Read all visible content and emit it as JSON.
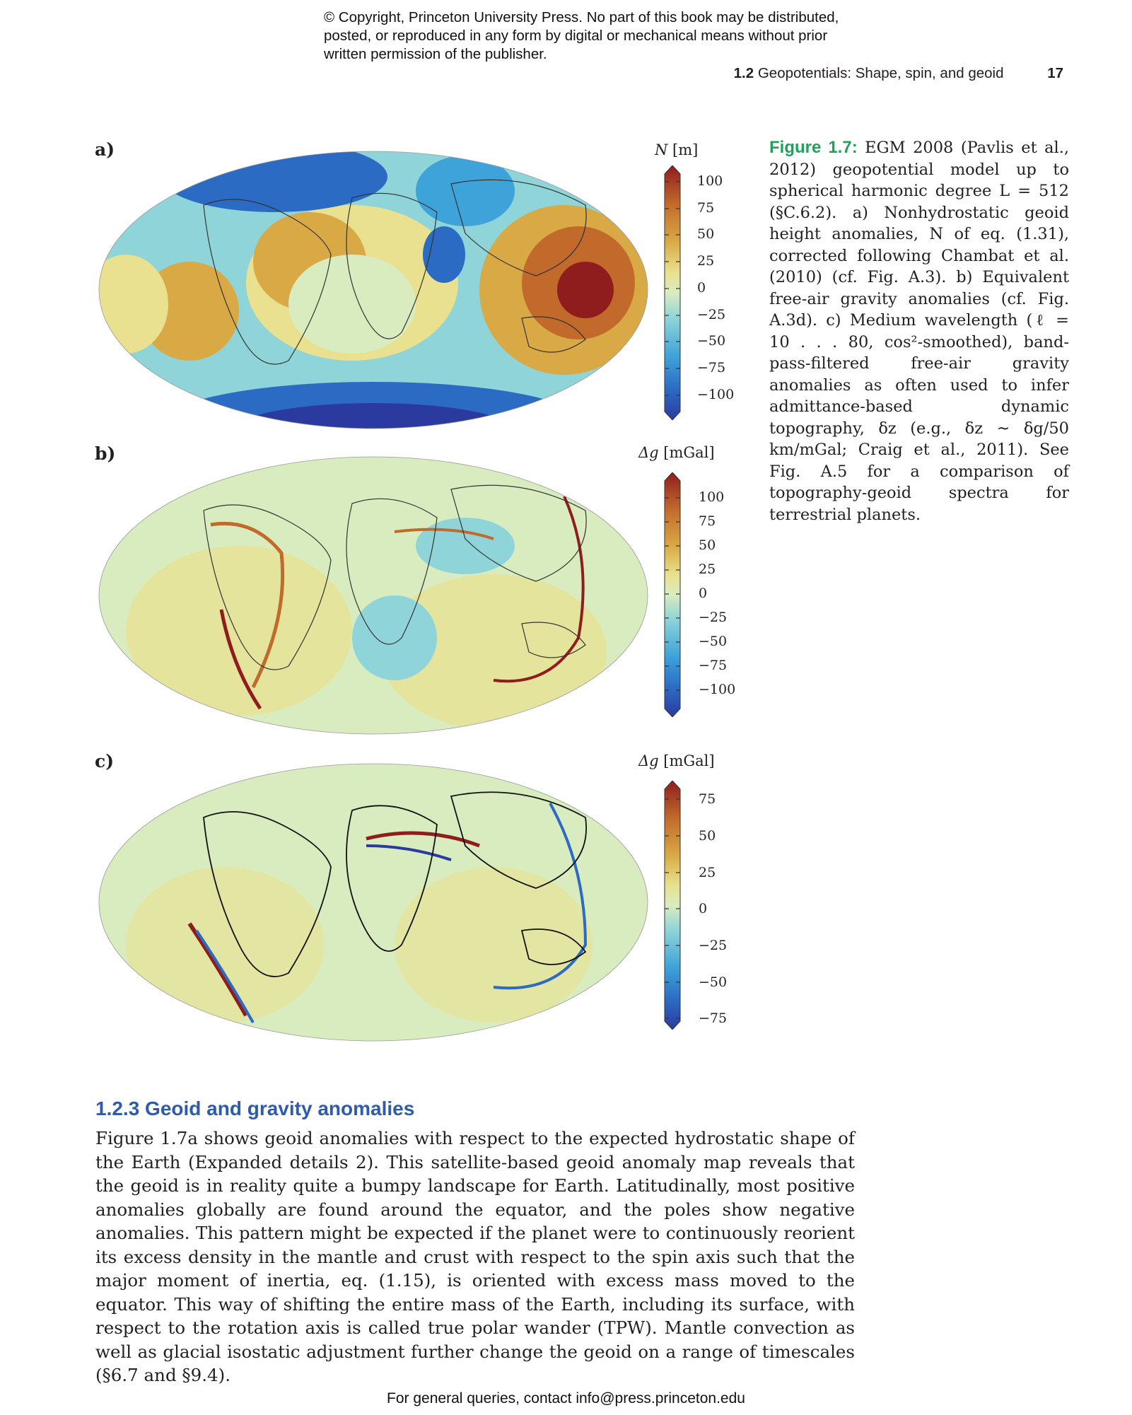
{
  "header": {
    "copyright_notice": "© Copyright, Princeton University Press. No part of this book may be distributed, posted, or reproduced in any form by digital or mechanical means without prior written permission of the publisher.",
    "section_number": "1.2",
    "section_title": "Geopotentials: Shape, spin, and geoid",
    "page_number": "17"
  },
  "figure": {
    "panels": [
      {
        "letter": "a)",
        "colorbar_symbol": "N",
        "colorbar_unit": " [m]",
        "ticks": [
          "100",
          "75",
          "50",
          "25",
          "0",
          "−25",
          "−50",
          "−75",
          "−100"
        ]
      },
      {
        "letter": "b)",
        "colorbar_symbol": "Δg",
        "colorbar_unit": " [mGal]",
        "ticks": [
          "100",
          "75",
          "50",
          "25",
          "0",
          "−25",
          "−50",
          "−75",
          "−100"
        ]
      },
      {
        "letter": "c)",
        "colorbar_symbol": "Δg",
        "colorbar_unit": " [mGal]",
        "ticks": [
          "75",
          "50",
          "25",
          "0",
          "−25",
          "−50",
          "−75"
        ]
      }
    ],
    "colormap": [
      "#2b3a9e",
      "#2c6bc4",
      "#3ea3d8",
      "#8fd4d8",
      "#d9ecc0",
      "#e9e18f",
      "#d9a945",
      "#c16a2c",
      "#8f1d1d"
    ],
    "caption": {
      "label": "Figure 1.7:",
      "text": "EGM 2008 (Pavlis et al., 2012) geopotential model up to spherical harmonic degree L = 512 (§C.6.2). a) Nonhydrostatic geoid height anomalies, N of eq. (1.31), corrected following Chambat et al. (2010) (cf. Fig. A.3). b) Equivalent free-air gravity anomalies (cf. Fig. A.3d). c) Medium wavelength (ℓ = 10 . . . 80, cos²-smoothed), band-pass-filtered free-air gravity anomalies as often used to infer admittance-based dynamic topography, δz (e.g., δz ∼ δg/50 km/mGal; Craig et al., 2011). See Fig. A.5 for a comparison of topography-geoid spectra for terrestrial planets."
    }
  },
  "section": {
    "heading": "1.2.3 Geoid and gravity anomalies",
    "paragraph": "Figure 1.7a shows geoid anomalies with respect to the expected hydrostatic shape of the Earth (Expanded details 2). This satellite-based geoid anomaly map reveals that the geoid is in reality quite a bumpy landscape for Earth. Latitudinally, most positive anomalies globally are found around the equator, and the poles show negative anomalies. This pattern might be expected if the planet were to continuously reorient its excess density in the mantle and crust with respect to the spin axis such that the major moment of inertia, eq. (1.15), is oriented with excess mass moved to the equator. This way of shifting the entire mass of the Earth, including its surface, with respect to the rotation axis is called true polar wander (TPW). Mantle convection as well as glacial isostatic adjustment further change the geoid on a range of timescales (§6.7 and §9.4)."
  },
  "footer": {
    "contact": "For general queries, contact info@press.princeton.edu"
  }
}
